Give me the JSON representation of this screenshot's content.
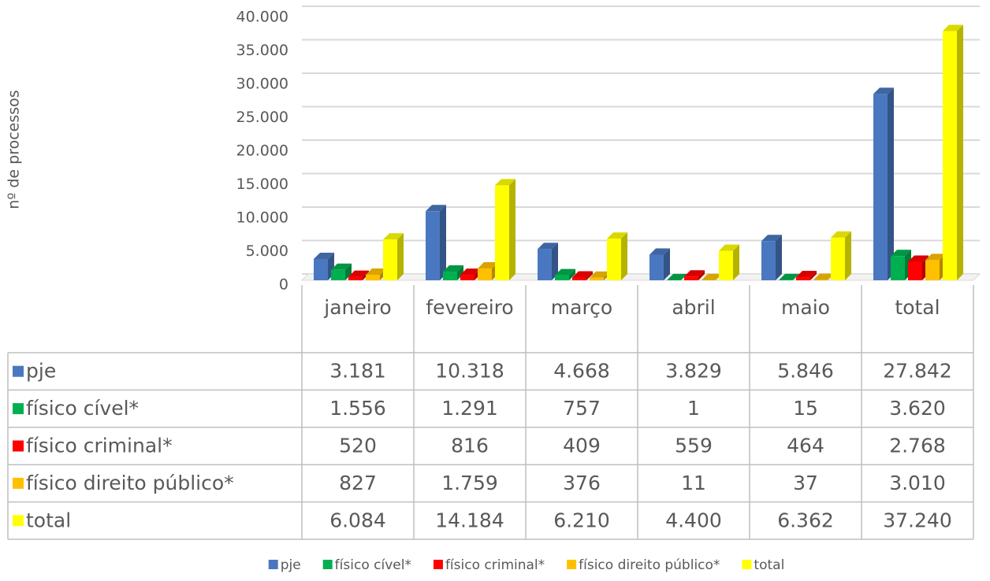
{
  "chart_data": {
    "type": "bar3d",
    "y_axis_label": "nº de processos",
    "categories": [
      "janeiro",
      "fevereiro",
      "março",
      "abril",
      "maio",
      "total"
    ],
    "series": [
      {
        "name": "pje",
        "color": "#4a78c0",
        "values": [
          3181,
          10318,
          4668,
          3829,
          5846,
          27842
        ],
        "value_labels": [
          "3.181",
          "10.318",
          "4.668",
          "3.829",
          "5.846",
          "27.842"
        ]
      },
      {
        "name": "físico cível*",
        "color": "#00b050",
        "values": [
          1556,
          1291,
          757,
          1,
          15,
          3620
        ],
        "value_labels": [
          "1.556",
          "1.291",
          "757",
          "1",
          "15",
          "3.620"
        ]
      },
      {
        "name": "físico criminal*",
        "color": "#ff0000",
        "values": [
          520,
          816,
          409,
          559,
          464,
          2768
        ],
        "value_labels": [
          "520",
          "816",
          "409",
          "559",
          "464",
          "2.768"
        ]
      },
      {
        "name": "físico direito público*",
        "color": "#ffc000",
        "values": [
          827,
          1759,
          376,
          11,
          37,
          3010
        ],
        "value_labels": [
          "827",
          "1.759",
          "376",
          "11",
          "37",
          "3.010"
        ]
      },
      {
        "name": "total",
        "color": "#ffff00",
        "values": [
          6084,
          14184,
          6210,
          4400,
          6362,
          37240
        ],
        "value_labels": [
          "6.084",
          "14.184",
          "6.210",
          "4.400",
          "6.362",
          "37.240"
        ]
      }
    ],
    "ylim": [
      0,
      40000
    ],
    "yticks": [
      0,
      {
        "value": 5000,
        "label": "5.000"
      },
      {
        "value": 10000,
        "label": "10.000"
      },
      {
        "value": 15000,
        "label": "15.000"
      },
      {
        "value": 20000,
        "label": "20.000"
      },
      {
        "value": 25000,
        "label": "25.000"
      },
      {
        "value": 30000,
        "label": "30.000"
      },
      {
        "value": 35000,
        "label": "35.000"
      },
      {
        "value": 40000,
        "label": "40.000"
      }
    ],
    "grid": true,
    "legend": "bottom"
  }
}
